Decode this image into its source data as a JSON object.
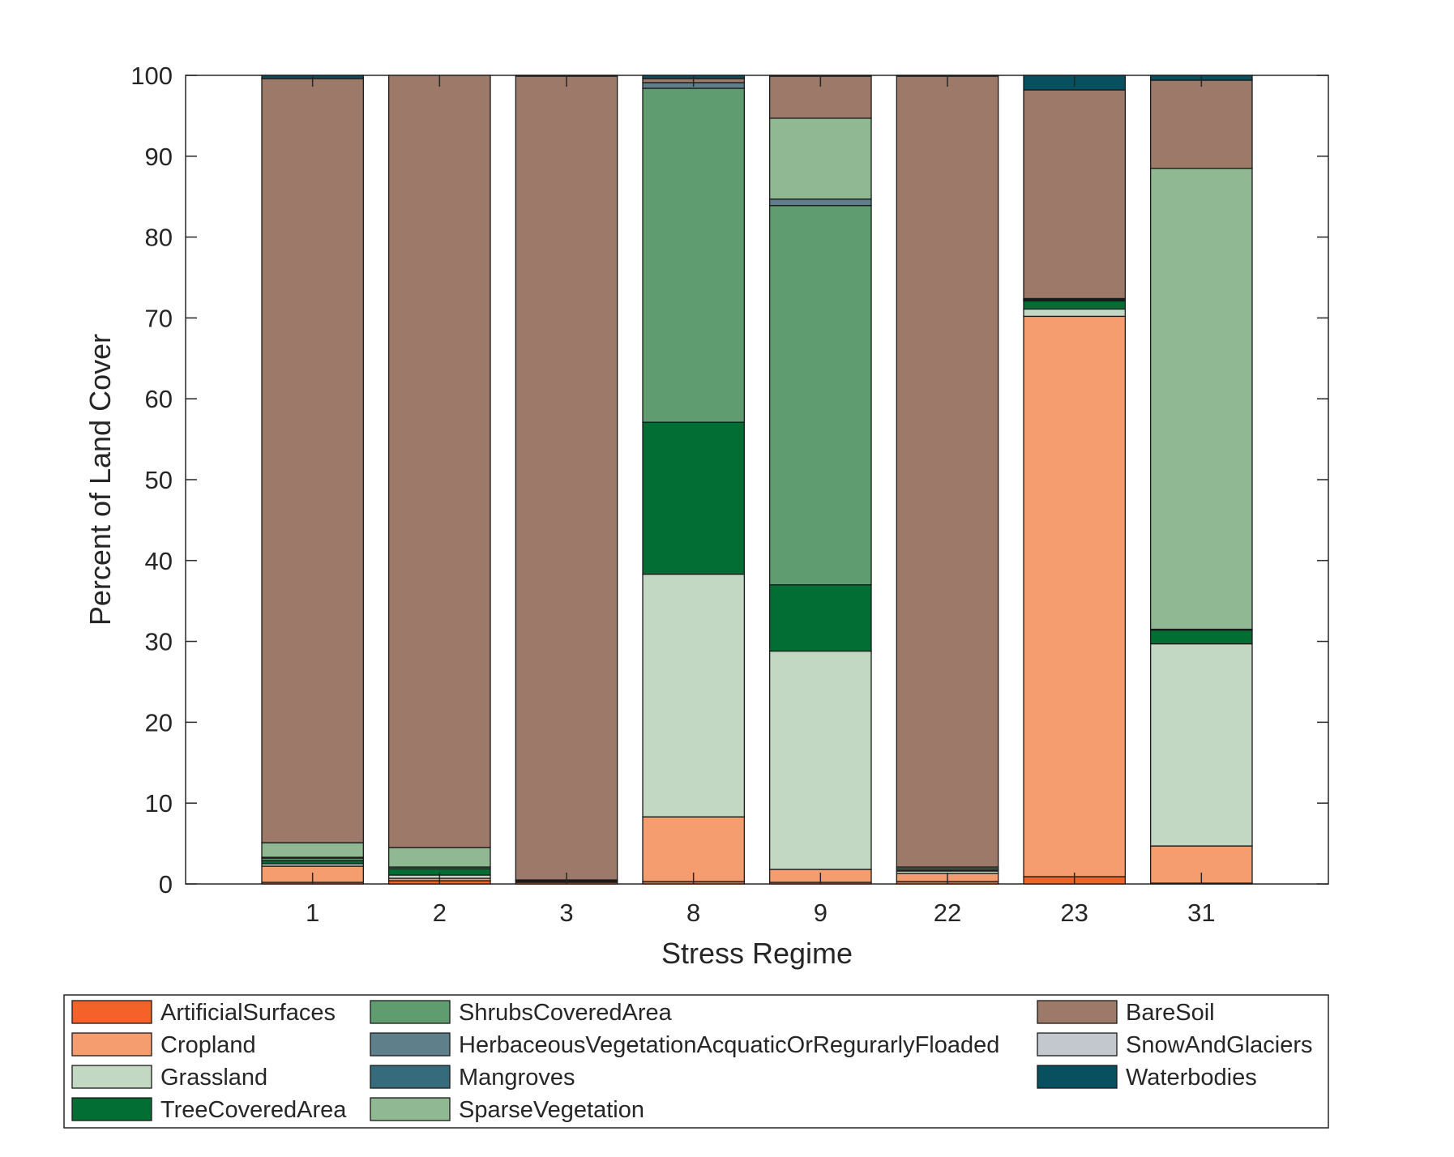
{
  "chart_data": {
    "type": "bar",
    "stacked": true,
    "title": "",
    "xlabel": "Stress Regime",
    "ylabel": "Percent of Land Cover",
    "ylim": [
      0,
      100
    ],
    "yticks": [
      "0",
      "10",
      "20",
      "30",
      "40",
      "50",
      "60",
      "70",
      "80",
      "90",
      "100"
    ],
    "categories": [
      "1",
      "2",
      "3",
      "8",
      "9",
      "22",
      "23",
      "31"
    ],
    "grid": false,
    "legend_position": "bottom",
    "series": [
      {
        "name": "ArtificialSurfaces",
        "color": "#f4622a",
        "values": [
          0.2,
          0.4,
          0.2,
          0.3,
          0.2,
          0.3,
          0.9,
          0.1
        ]
      },
      {
        "name": "Cropland",
        "color": "#f69d70",
        "values": [
          2.0,
          0.3,
          0.1,
          8.0,
          1.6,
          1.0,
          69.3,
          4.6
        ]
      },
      {
        "name": "Grassland",
        "color": "#c2d8c2",
        "values": [
          0.3,
          0.4,
          0.1,
          30.0,
          27.0,
          0.3,
          0.9,
          25.0
        ]
      },
      {
        "name": "TreeCoveredArea",
        "color": "#026e33",
        "values": [
          0.4,
          0.8,
          0.1,
          18.8,
          8.2,
          0.1,
          1.0,
          1.7
        ]
      },
      {
        "name": "ShrubsCoveredArea",
        "color": "#5f9c70",
        "values": [
          0.3,
          0.2,
          0.0,
          41.3,
          46.9,
          0.2,
          0.1,
          0.1
        ]
      },
      {
        "name": "HerbaceousVegetationAcquaticOrRegurarlyFloaded",
        "color": "#5f7f8a",
        "values": [
          0.1,
          0.0,
          0.0,
          0.7,
          0.8,
          0.0,
          0.1,
          0.0
        ]
      },
      {
        "name": "Mangroves",
        "color": "#356b7b",
        "values": [
          0.0,
          0.0,
          0.0,
          0.0,
          0.0,
          0.0,
          0.0,
          0.0
        ]
      },
      {
        "name": "SparseVegetation",
        "color": "#8fb893",
        "values": [
          1.8,
          2.4,
          0.0,
          0.0,
          10.0,
          0.2,
          0.1,
          57.0
        ]
      },
      {
        "name": "BareSoil",
        "color": "#9c7969",
        "values": [
          94.5,
          95.5,
          99.4,
          0.5,
          5.2,
          97.8,
          25.8,
          10.9
        ]
      },
      {
        "name": "SnowAndGlaciers",
        "color": "#c3c8ce",
        "values": [
          0.0,
          0.0,
          0.0,
          0.0,
          0.0,
          0.0,
          0.0,
          0.0
        ]
      },
      {
        "name": "Waterbodies",
        "color": "#08505f",
        "values": [
          0.4,
          0.0,
          0.1,
          0.4,
          0.1,
          0.1,
          1.8,
          0.6
        ]
      }
    ]
  }
}
